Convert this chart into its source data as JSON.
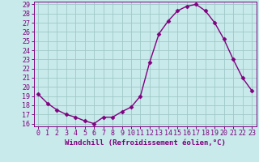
{
  "x": [
    0,
    1,
    2,
    3,
    4,
    5,
    6,
    7,
    8,
    9,
    10,
    11,
    12,
    13,
    14,
    15,
    16,
    17,
    18,
    19,
    20,
    21,
    22,
    23
  ],
  "y": [
    19.2,
    18.2,
    17.5,
    17.0,
    16.7,
    16.3,
    16.0,
    16.7,
    16.7,
    17.3,
    17.8,
    19.0,
    22.7,
    25.8,
    27.2,
    28.3,
    28.8,
    29.0,
    28.3,
    27.0,
    25.2,
    23.0,
    21.0,
    19.6
  ],
  "line_color": "#800080",
  "marker": "D",
  "markersize": 2.5,
  "linewidth": 1.0,
  "bg_color": "#c8eaea",
  "grid_color": "#a0c8c8",
  "xlabel": "Windchill (Refroidissement éolien,°C)",
  "xlabel_fontsize": 6.5,
  "tick_fontsize": 6.0,
  "ylim": [
    16,
    29
  ],
  "yticks": [
    16,
    17,
    18,
    19,
    20,
    21,
    22,
    23,
    24,
    25,
    26,
    27,
    28,
    29
  ],
  "xticks": [
    0,
    1,
    2,
    3,
    4,
    5,
    6,
    7,
    8,
    9,
    10,
    11,
    12,
    13,
    14,
    15,
    16,
    17,
    18,
    19,
    20,
    21,
    22,
    23
  ]
}
